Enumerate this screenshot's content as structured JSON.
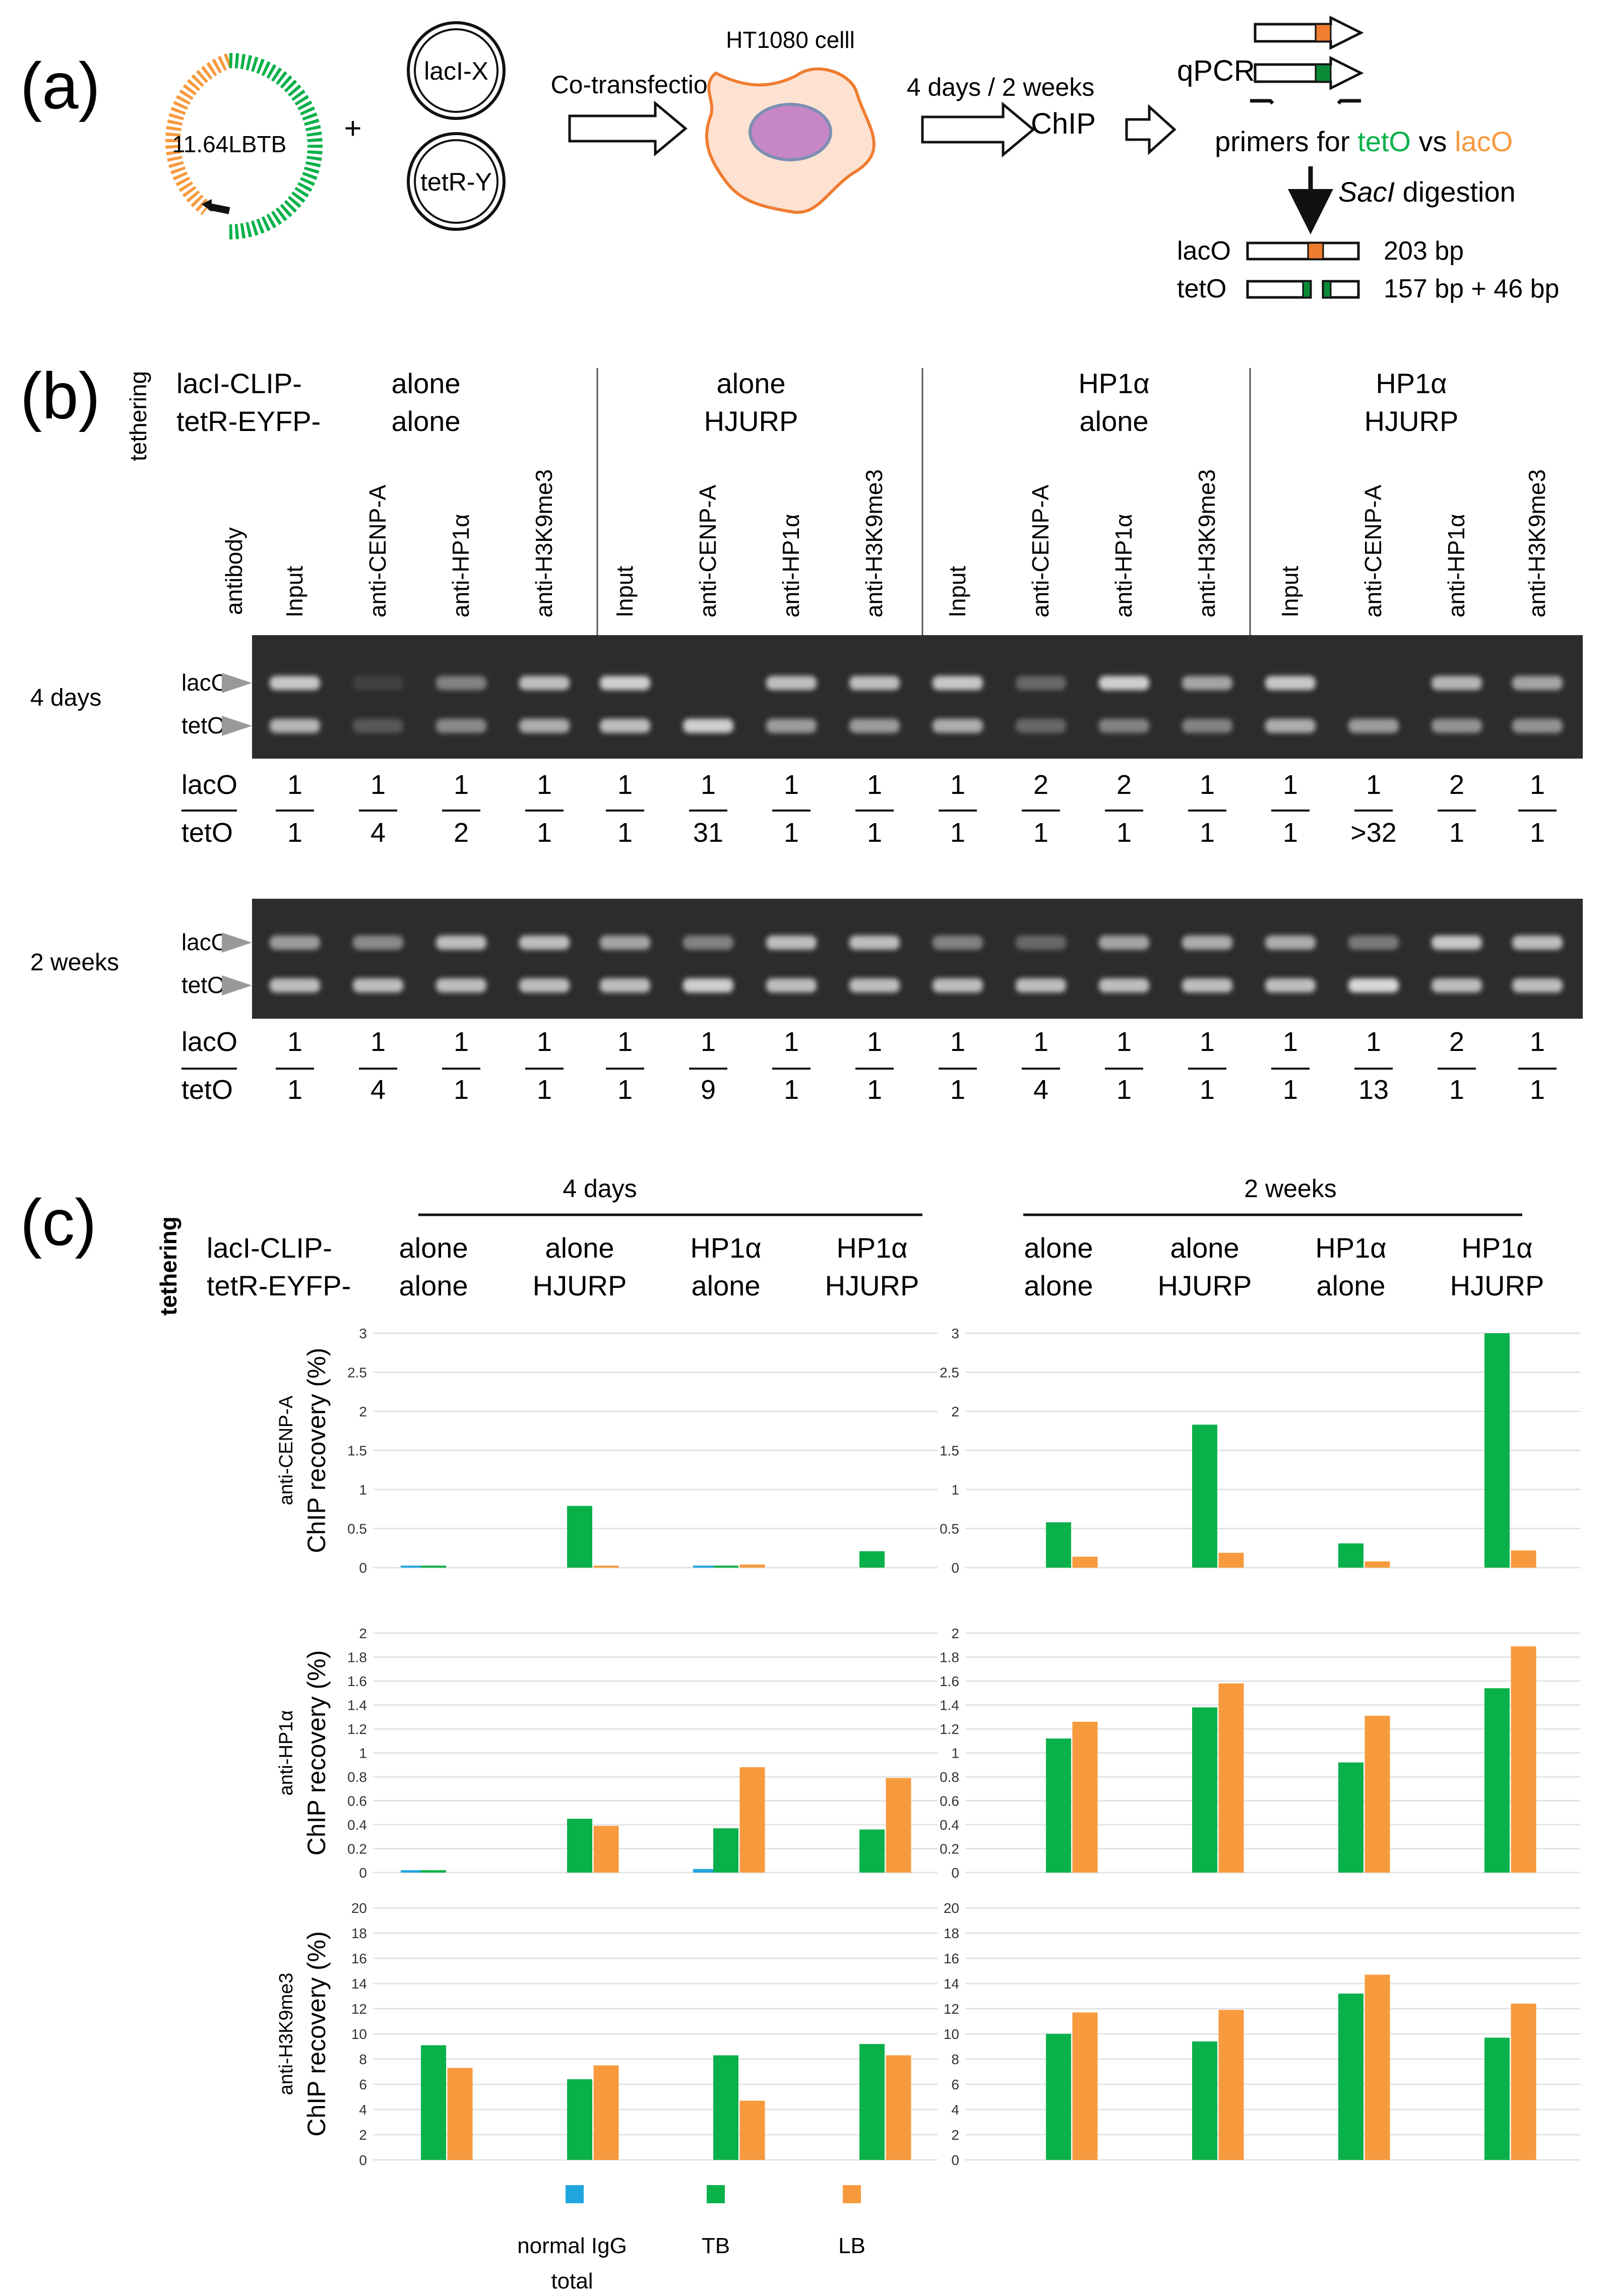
{
  "colors": {
    "green": "#0ab14a",
    "orange": "#f79a3e",
    "blue": "#20a6df",
    "gel_bg": "#2c2c2c",
    "band": "#d8d8d8",
    "cell_fill": "#fde2d2",
    "cell_edge": "#f07c30",
    "nucleus": "#c686c8",
    "nucleus_edge": "#7c8fb2",
    "grid": "#e3e3e3"
  },
  "panel_a": {
    "label": "(a)",
    "plasmid": "11.64LBTB",
    "plus": "+",
    "construct1": "lacI-X",
    "construct2": "tetR-Y",
    "cotransfection": "Co-transfection",
    "cell": "HT1080 celll",
    "timing": "4 days / 2 weeks",
    "chip": "ChIP",
    "qpcr": "qPCR",
    "primers_prefix": "primers for ",
    "primers_tet": "tetO",
    "primers_vs": " vs ",
    "primers_lac": "lacO",
    "digestion_enzyme": "SacI",
    "digestion_word": " digestion",
    "frag_lac_label": "lacO",
    "frag_lac_size": "203 bp",
    "frag_tet_label": "tetO",
    "frag_tet_size": "157 bp + 46 bp"
  },
  "panel_b": {
    "label": "(b)",
    "tethering": "tethering",
    "row1": "lacI-CLIP-",
    "row2": "tetR-EYFP-",
    "antibody": "antibody",
    "groups": [
      {
        "top": "alone",
        "bottom": "alone"
      },
      {
        "top": "alone",
        "bottom": "HJURP"
      },
      {
        "top": "HP1α",
        "bottom": "alone"
      },
      {
        "top": "HP1α",
        "bottom": "HJURP"
      }
    ],
    "lanes": [
      "Input",
      "anti-CENP-A",
      "anti-HP1α",
      "anti-H3K9me3"
    ],
    "gels": [
      {
        "time": "4 days",
        "lac_label": "lacO",
        "tet_label": "tetO",
        "ratio_lac_label": "lacO",
        "ratio_tet_label": "tetO",
        "lac_num": [
          "1",
          "1",
          "1",
          "1",
          "1",
          "1",
          "1",
          "1",
          "1",
          "2",
          "2",
          "1",
          "1",
          "1",
          "2",
          "1"
        ],
        "tet_den": [
          "1",
          "4",
          "2",
          "1",
          "1",
          "31",
          "1",
          "1",
          "1",
          "1",
          "1",
          "1",
          "1",
          ">32",
          "1",
          "1"
        ],
        "lac_int": [
          0.9,
          0.12,
          0.5,
          0.85,
          0.95,
          0.0,
          0.85,
          0.85,
          0.9,
          0.35,
          0.95,
          0.7,
          0.9,
          0.0,
          0.8,
          0.7
        ],
        "tet_int": [
          0.8,
          0.25,
          0.55,
          0.75,
          0.85,
          0.95,
          0.65,
          0.65,
          0.75,
          0.35,
          0.5,
          0.5,
          0.75,
          0.65,
          0.6,
          0.6
        ]
      },
      {
        "time": "2 weeks",
        "lac_label": "lacO",
        "tet_label": "tetO",
        "ratio_lac_label": "lacO",
        "ratio_tet_label": "tetO",
        "lac_num": [
          "1",
          "1",
          "1",
          "1",
          "1",
          "1",
          "1",
          "1",
          "1",
          "1",
          "1",
          "1",
          "1",
          "1",
          "2",
          "1"
        ],
        "tet_den": [
          "1",
          "4",
          "1",
          "1",
          "1",
          "9",
          "1",
          "1",
          "1",
          "4",
          "1",
          "1",
          "1",
          "13",
          "1",
          "1"
        ],
        "lac_int": [
          0.65,
          0.55,
          0.85,
          0.85,
          0.7,
          0.5,
          0.85,
          0.85,
          0.5,
          0.35,
          0.7,
          0.75,
          0.75,
          0.45,
          0.9,
          0.85
        ],
        "tet_int": [
          0.85,
          0.85,
          0.85,
          0.85,
          0.85,
          0.95,
          0.85,
          0.85,
          0.85,
          0.85,
          0.85,
          0.85,
          0.85,
          1.0,
          0.85,
          0.85
        ]
      }
    ]
  },
  "panel_c": {
    "label": "(c)",
    "tethering": "tethering",
    "row1": "lacI-CLIP-",
    "row2": "tetR-EYFP-",
    "time_headers": [
      "4 days",
      "2 weeks"
    ],
    "groups": [
      {
        "top": "alone",
        "bottom": "alone"
      },
      {
        "top": "alone",
        "bottom": "HJURP"
      },
      {
        "top": "HP1α",
        "bottom": "alone"
      },
      {
        "top": "HP1α",
        "bottom": "HJURP"
      }
    ],
    "legend": [
      {
        "label_lines": [
          "normal  IgG",
          "total"
        ],
        "color": "#20a6df"
      },
      {
        "label_lines": [
          "TB"
        ],
        "color": "#0ab14a"
      },
      {
        "label_lines": [
          "LB"
        ],
        "color": "#f79a3e"
      }
    ]
  },
  "chart_data": [
    {
      "type": "bar",
      "antibody": "anti-CENP-A",
      "time": "4 days",
      "ylabel": "ChIP recovery (%)",
      "ylim": [
        0,
        3
      ],
      "yticks": [
        "0",
        "0.5",
        "1",
        "1.5",
        "2",
        "2.5",
        "3"
      ],
      "categories": [
        "alone/alone",
        "alone/HJURP",
        "HP1α/alone",
        "HP1α/HJURP"
      ],
      "series": [
        {
          "name": "normal IgG total",
          "values": [
            0.02,
            null,
            0.02,
            null
          ]
        },
        {
          "name": "TB",
          "values": [
            0.02,
            0.79,
            0.02,
            0.21
          ]
        },
        {
          "name": "LB",
          "values": [
            null,
            0.02,
            0.04,
            null
          ]
        }
      ]
    },
    {
      "type": "bar",
      "antibody": "anti-CENP-A",
      "time": "2 weeks",
      "ylabel": "ChIP recovery (%)",
      "ylim": [
        0,
        3
      ],
      "yticks": [
        "0",
        "0.5",
        "1",
        "1.5",
        "2",
        "2.5",
        "3"
      ],
      "categories": [
        "alone/alone",
        "alone/HJURP",
        "HP1α/alone",
        "HP1α/HJURP"
      ],
      "series": [
        {
          "name": "normal IgG total",
          "values": [
            null,
            null,
            null,
            null
          ]
        },
        {
          "name": "TB",
          "values": [
            0.58,
            1.83,
            0.31,
            3.0
          ]
        },
        {
          "name": "LB",
          "values": [
            0.14,
            0.19,
            0.08,
            0.22
          ]
        }
      ]
    },
    {
      "type": "bar",
      "antibody": "anti-HP1α",
      "time": "4 days",
      "ylabel": "ChIP recovery (%)",
      "ylim": [
        0,
        2
      ],
      "yticks": [
        "0",
        "0.2",
        "0.4",
        "0.6",
        "0.8",
        "1",
        "1.2",
        "1.4",
        "1.6",
        "1.8",
        "2"
      ],
      "categories": [
        "alone/alone",
        "alone/HJURP",
        "HP1α/alone",
        "HP1α/HJURP"
      ],
      "series": [
        {
          "name": "normal IgG total",
          "values": [
            0.02,
            null,
            0.03,
            null
          ]
        },
        {
          "name": "TB",
          "values": [
            0.02,
            0.45,
            0.37,
            0.36
          ]
        },
        {
          "name": "LB",
          "values": [
            null,
            0.39,
            0.88,
            0.79
          ]
        }
      ]
    },
    {
      "type": "bar",
      "antibody": "anti-HP1α",
      "time": "2 weeks",
      "ylabel": "ChIP recovery (%)",
      "ylim": [
        0,
        2
      ],
      "yticks": [
        "0",
        "0.2",
        "0.4",
        "0.6",
        "0.8",
        "1",
        "1.2",
        "1.4",
        "1.6",
        "1.8",
        "2"
      ],
      "categories": [
        "alone/alone",
        "alone/HJURP",
        "HP1α/alone",
        "HP1α/HJURP"
      ],
      "series": [
        {
          "name": "normal IgG total",
          "values": [
            null,
            null,
            null,
            null
          ]
        },
        {
          "name": "TB",
          "values": [
            1.12,
            1.38,
            0.92,
            1.54
          ]
        },
        {
          "name": "LB",
          "values": [
            1.26,
            1.58,
            1.31,
            1.89
          ]
        }
      ]
    },
    {
      "type": "bar",
      "antibody": "anti-H3K9me3",
      "time": "4 days",
      "ylabel": "ChIP recovery (%)",
      "ylim": [
        0,
        20
      ],
      "yticks": [
        "0",
        "2",
        "4",
        "6",
        "8",
        "10",
        "12",
        "14",
        "16",
        "18",
        "20"
      ],
      "categories": [
        "alone/alone",
        "alone/HJURP",
        "HP1α/alone",
        "HP1α/HJURP"
      ],
      "series": [
        {
          "name": "normal IgG total",
          "values": [
            null,
            null,
            null,
            null
          ]
        },
        {
          "name": "TB",
          "values": [
            9.1,
            6.4,
            8.3,
            9.2
          ]
        },
        {
          "name": "LB",
          "values": [
            7.3,
            7.5,
            4.7,
            8.3
          ]
        }
      ]
    },
    {
      "type": "bar",
      "antibody": "anti-H3K9me3",
      "time": "2 weeks",
      "ylabel": "ChIP recovery (%)",
      "ylim": [
        0,
        20
      ],
      "yticks": [
        "0",
        "2",
        "4",
        "6",
        "8",
        "10",
        "12",
        "14",
        "16",
        "18",
        "20"
      ],
      "categories": [
        "alone/alone",
        "alone/HJURP",
        "HP1α/alone",
        "HP1α/HJURP"
      ],
      "series": [
        {
          "name": "normal IgG total",
          "values": [
            null,
            null,
            null,
            null
          ]
        },
        {
          "name": "TB",
          "values": [
            10.0,
            9.4,
            13.2,
            9.7
          ]
        },
        {
          "name": "LB",
          "values": [
            11.7,
            11.9,
            14.7,
            12.4
          ]
        }
      ]
    }
  ]
}
